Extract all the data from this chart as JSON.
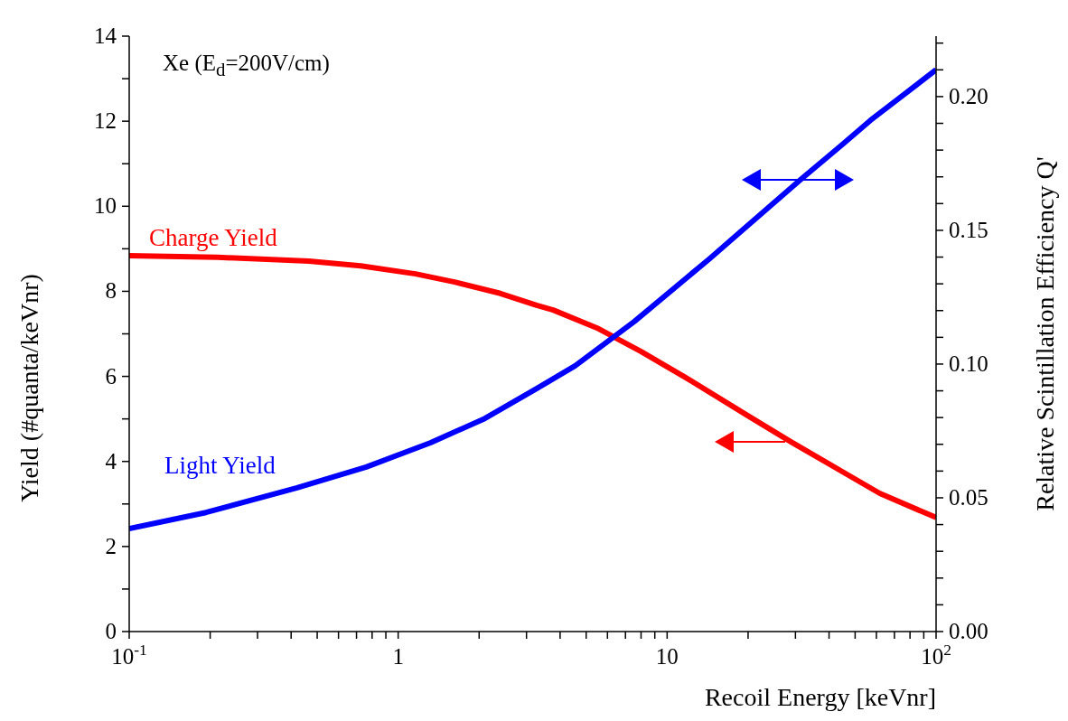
{
  "chart_data": {
    "type": "line",
    "xlabel": "Recoil Energy [keVnr]",
    "ylabel": "Yield (#quanta/keVnr)",
    "y2label": "Relative Scintillation Efficiency Q'",
    "annotations": [
      "Xe (E$_{d}$=200V/cm)"
    ],
    "log": "x",
    "grid": false,
    "legend": false,
    "marker": "none",
    "line_style": "solid",
    "xlim": [
      0.1,
      100
    ],
    "xticks": [
      {
        "value": 0.1,
        "label": "10$^{-1}$"
      },
      {
        "value": 0.2,
        "label": null
      },
      {
        "value": 0.3,
        "label": null
      },
      {
        "value": 0.4,
        "label": null
      },
      {
        "value": 0.5,
        "label": null
      },
      {
        "value": 0.6,
        "label": null
      },
      {
        "value": 0.7,
        "label": null
      },
      {
        "value": 0.8,
        "label": null
      },
      {
        "value": 0.9,
        "label": null
      },
      1,
      {
        "value": 2,
        "label": null
      },
      {
        "value": 3,
        "label": null
      },
      {
        "value": 4,
        "label": null
      },
      {
        "value": 5,
        "label": null
      },
      {
        "value": 6,
        "label": null
      },
      {
        "value": 7,
        "label": null
      },
      {
        "value": 8,
        "label": null
      },
      {
        "value": 9,
        "label": null
      },
      10,
      {
        "value": 20,
        "label": null
      },
      {
        "value": 30,
        "label": null
      },
      {
        "value": 40,
        "label": null
      },
      {
        "value": 50,
        "label": null
      },
      {
        "value": 60,
        "label": null
      },
      {
        "value": 70,
        "label": null
      },
      {
        "value": 80,
        "label": null
      },
      {
        "value": 90,
        "label": null
      },
      {
        "value": 100,
        "label": "10$^{2}$"
      }
    ],
    "ylim": [
      0,
      14
    ],
    "yticks": [
      0,
      {
        "value": 1,
        "label": null
      },
      2,
      {
        "value": 3,
        "label": null
      },
      4,
      {
        "value": 5,
        "label": null
      },
      6,
      {
        "value": 7,
        "label": null
      },
      8,
      {
        "value": 9,
        "label": null
      },
      10,
      {
        "value": 11,
        "label": null
      },
      12,
      {
        "value": 13,
        "label": null
      },
      14
    ],
    "y2lim": [
      0,
      0.2226
    ],
    "y2ticks": [
      {
        "value": 0,
        "label": "0.00"
      },
      {
        "value": 0.01,
        "label": null
      },
      {
        "value": 0.02,
        "label": null
      },
      {
        "value": 0.03,
        "label": null
      },
      {
        "value": 0.04,
        "label": null
      },
      {
        "value": 0.05,
        "label": "0.05"
      },
      {
        "value": 0.06,
        "label": null
      },
      {
        "value": 0.07,
        "label": null
      },
      {
        "value": 0.08,
        "label": null
      },
      {
        "value": 0.09,
        "label": null
      },
      {
        "value": 0.1,
        "label": "0.10"
      },
      {
        "value": 0.11,
        "label": null
      },
      {
        "value": 0.12,
        "label": null
      },
      {
        "value": 0.13,
        "label": null
      },
      {
        "value": 0.14,
        "label": null
      },
      {
        "value": 0.15,
        "label": "0.15"
      },
      {
        "value": 0.16,
        "label": null
      },
      {
        "value": 0.17,
        "label": null
      },
      {
        "value": 0.18,
        "label": null
      },
      {
        "value": 0.19,
        "label": null
      },
      {
        "value": 0.2,
        "label": "0.20"
      },
      {
        "value": 0.21,
        "label": null
      },
      {
        "value": 0.22,
        "label": null
      }
    ],
    "series": [
      {
        "name": "Charge Yield",
        "color": "#ff0000",
        "x": [
          0.1,
          0.213,
          0.466,
          0.726,
          1.16,
          1.62,
          2.4,
          3.27,
          3.77,
          5.48,
          7.98,
          11.6,
          19.9,
          28.9,
          44.8,
          61.7,
          100
        ],
        "values": [
          8.84,
          8.8,
          8.71,
          8.6,
          8.41,
          8.22,
          7.95,
          7.67,
          7.56,
          7.14,
          6.59,
          5.99,
          5.08,
          4.46,
          3.76,
          3.25,
          2.68
        ]
      },
      {
        "name": "Light Yield",
        "color": "#0000ff",
        "x": [
          0.1,
          0.193,
          0.421,
          0.761,
          1.32,
          2.1,
          3.27,
          4.55,
          7.55,
          14.4,
          31.5,
          44.8,
          57.0,
          72.6,
          100
        ],
        "values": [
          2.42,
          2.8,
          3.38,
          3.87,
          4.44,
          5.01,
          5.71,
          6.25,
          7.29,
          8.77,
          10.64,
          11.45,
          12.02,
          12.53,
          13.21
        ]
      }
    ]
  }
}
